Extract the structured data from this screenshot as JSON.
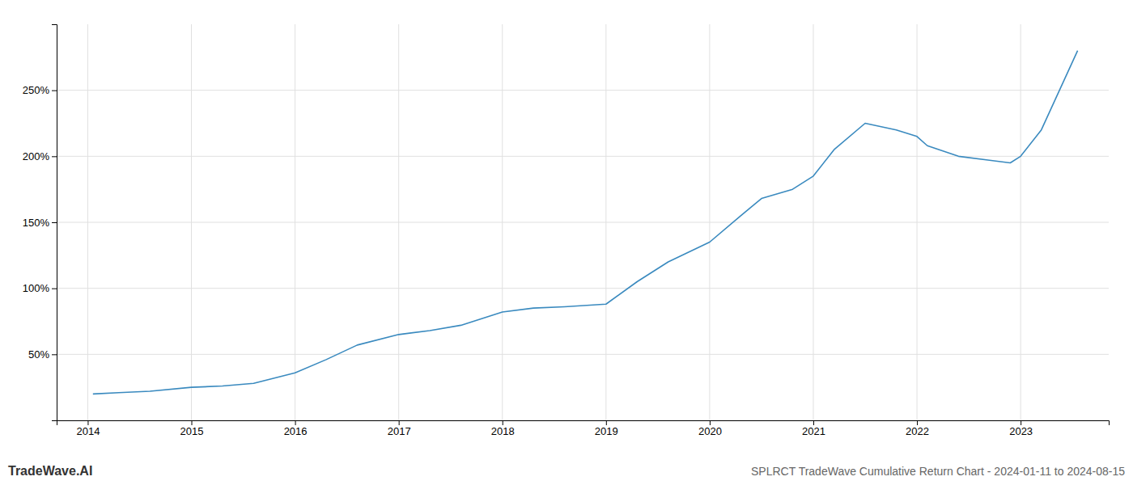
{
  "chart_data": {
    "type": "line",
    "title": "SPLRCT TradeWave Cumulative Return Chart - 2024-01-11 to 2024-08-15",
    "annotations": [
      "TradeWave.AI"
    ],
    "color": "#3a8abf",
    "x": [
      2014.05,
      2014.3,
      2014.6,
      2015.0,
      2015.3,
      2015.6,
      2016.0,
      2016.3,
      2016.6,
      2017.0,
      2017.3,
      2017.6,
      2018.0,
      2018.3,
      2018.6,
      2019.0,
      2019.3,
      2019.6,
      2020.0,
      2020.3,
      2020.5,
      2020.8,
      2021.0,
      2021.2,
      2021.5,
      2021.8,
      2022.0,
      2022.1,
      2022.4,
      2022.7,
      2022.9,
      2023.0,
      2023.2,
      2023.55
    ],
    "values": [
      20,
      21,
      22,
      25,
      26,
      28,
      36,
      46,
      57,
      65,
      68,
      72,
      82,
      85,
      86,
      88,
      105,
      120,
      135,
      155,
      168,
      175,
      185,
      205,
      225,
      220,
      215,
      208,
      200,
      197,
      195,
      200,
      220,
      280
    ],
    "xlim": [
      2013.7,
      2023.85
    ],
    "xticks": [
      2014,
      2015,
      2016,
      2017,
      2018,
      2019,
      2020,
      2021,
      2022,
      2023
    ],
    "ylim": [
      0,
      300
    ],
    "yticks": [
      {
        "value": 50,
        "label": "50%"
      },
      {
        "value": 100,
        "label": "100%"
      },
      {
        "value": 150,
        "label": "150%"
      },
      {
        "value": 200,
        "label": "200%"
      },
      {
        "value": 250,
        "label": "250%"
      }
    ],
    "grid": true
  }
}
